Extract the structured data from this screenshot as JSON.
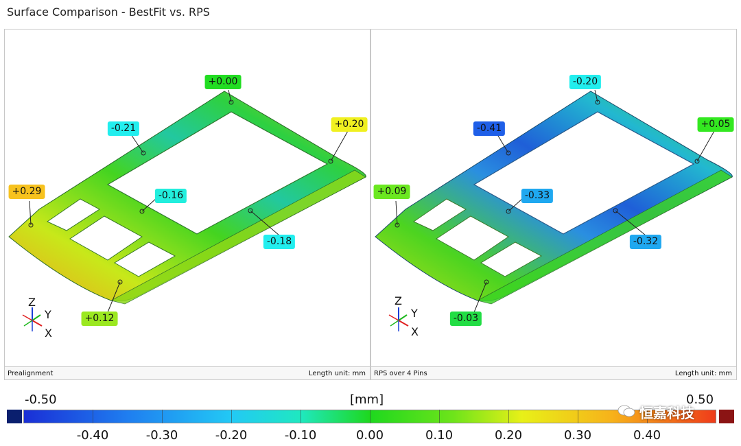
{
  "title": "Surface Comparison - BestFit vs. RPS",
  "panels": [
    {
      "footer_left": "Prealignment",
      "footer_right": "Length unit: mm",
      "callouts": [
        {
          "text": "+0.00",
          "color": "#22dd22"
        },
        {
          "text": "-0.21",
          "color": "#22eeee"
        },
        {
          "text": "+0.20",
          "color": "#f0f020"
        },
        {
          "text": "+0.29",
          "color": "#f7c21e"
        },
        {
          "text": "-0.16",
          "color": "#22eedd"
        },
        {
          "text": "-0.18",
          "color": "#22eeee"
        },
        {
          "text": "+0.12",
          "color": "#9be820"
        }
      ]
    },
    {
      "footer_left": "RPS over 4 Pins",
      "footer_right": "Length unit: mm",
      "callouts": [
        {
          "text": "-0.20",
          "color": "#22eeee"
        },
        {
          "text": "-0.41",
          "color": "#1f5fe8"
        },
        {
          "text": "+0.05",
          "color": "#33e820"
        },
        {
          "text": "+0.09",
          "color": "#6be820"
        },
        {
          "text": "-0.33",
          "color": "#1fa8f0"
        },
        {
          "text": "-0.32",
          "color": "#1fa8f0"
        },
        {
          "text": "-0.03",
          "color": "#22dd44"
        }
      ]
    }
  ],
  "axes": {
    "z": "Z",
    "y": "Y",
    "x": "X"
  },
  "scale": {
    "unit": "[mm]",
    "min": "-0.50",
    "max": "0.50",
    "ticks": [
      "-0.40",
      "-0.30",
      "-0.20",
      "-0.10",
      "0.00",
      "0.10",
      "0.20",
      "0.30",
      "0.40"
    ]
  },
  "watermark": "恒嘉科技"
}
